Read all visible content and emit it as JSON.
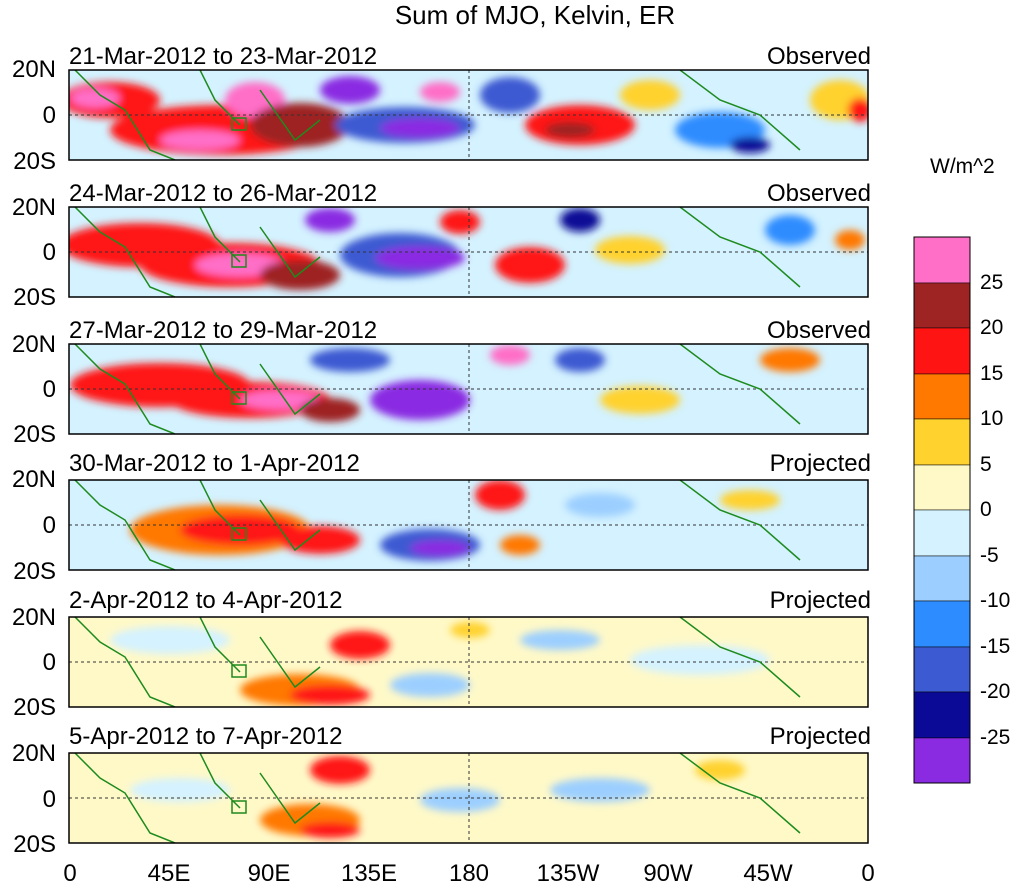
{
  "title": "Sum of MJO, Kelvin, ER",
  "panels": [
    {
      "date_range": "21-Mar-2012 to 23-Mar-2012",
      "status": "Observed"
    },
    {
      "date_range": "24-Mar-2012 to 26-Mar-2012",
      "status": "Observed"
    },
    {
      "date_range": "27-Mar-2012 to 29-Mar-2012",
      "status": "Observed"
    },
    {
      "date_range": "30-Mar-2012 to 1-Apr-2012",
      "status": "Projected"
    },
    {
      "date_range": "2-Apr-2012 to 4-Apr-2012",
      "status": "Projected"
    },
    {
      "date_range": "5-Apr-2012 to 7-Apr-2012",
      "status": "Projected"
    }
  ],
  "y_ticks": [
    "20N",
    "0",
    "20S"
  ],
  "x_ticks": [
    "0",
    "45E",
    "90E",
    "135E",
    "180",
    "135W",
    "90W",
    "45W",
    "0"
  ],
  "colorbar": {
    "units": "W/m^2",
    "labels": [
      "25",
      "20",
      "15",
      "10",
      "5",
      "0",
      "-5",
      "-10",
      "-15",
      "-20",
      "-25"
    ],
    "colors": [
      "#ff6ec7",
      "#9e2323",
      "#ff1414",
      "#ff7800",
      "#ffd22d",
      "#fff9c8",
      "#d4f2ff",
      "#9ccfff",
      "#2d8cff",
      "#3c5ad2",
      "#0a0a96",
      "#8a2be2"
    ]
  }
}
